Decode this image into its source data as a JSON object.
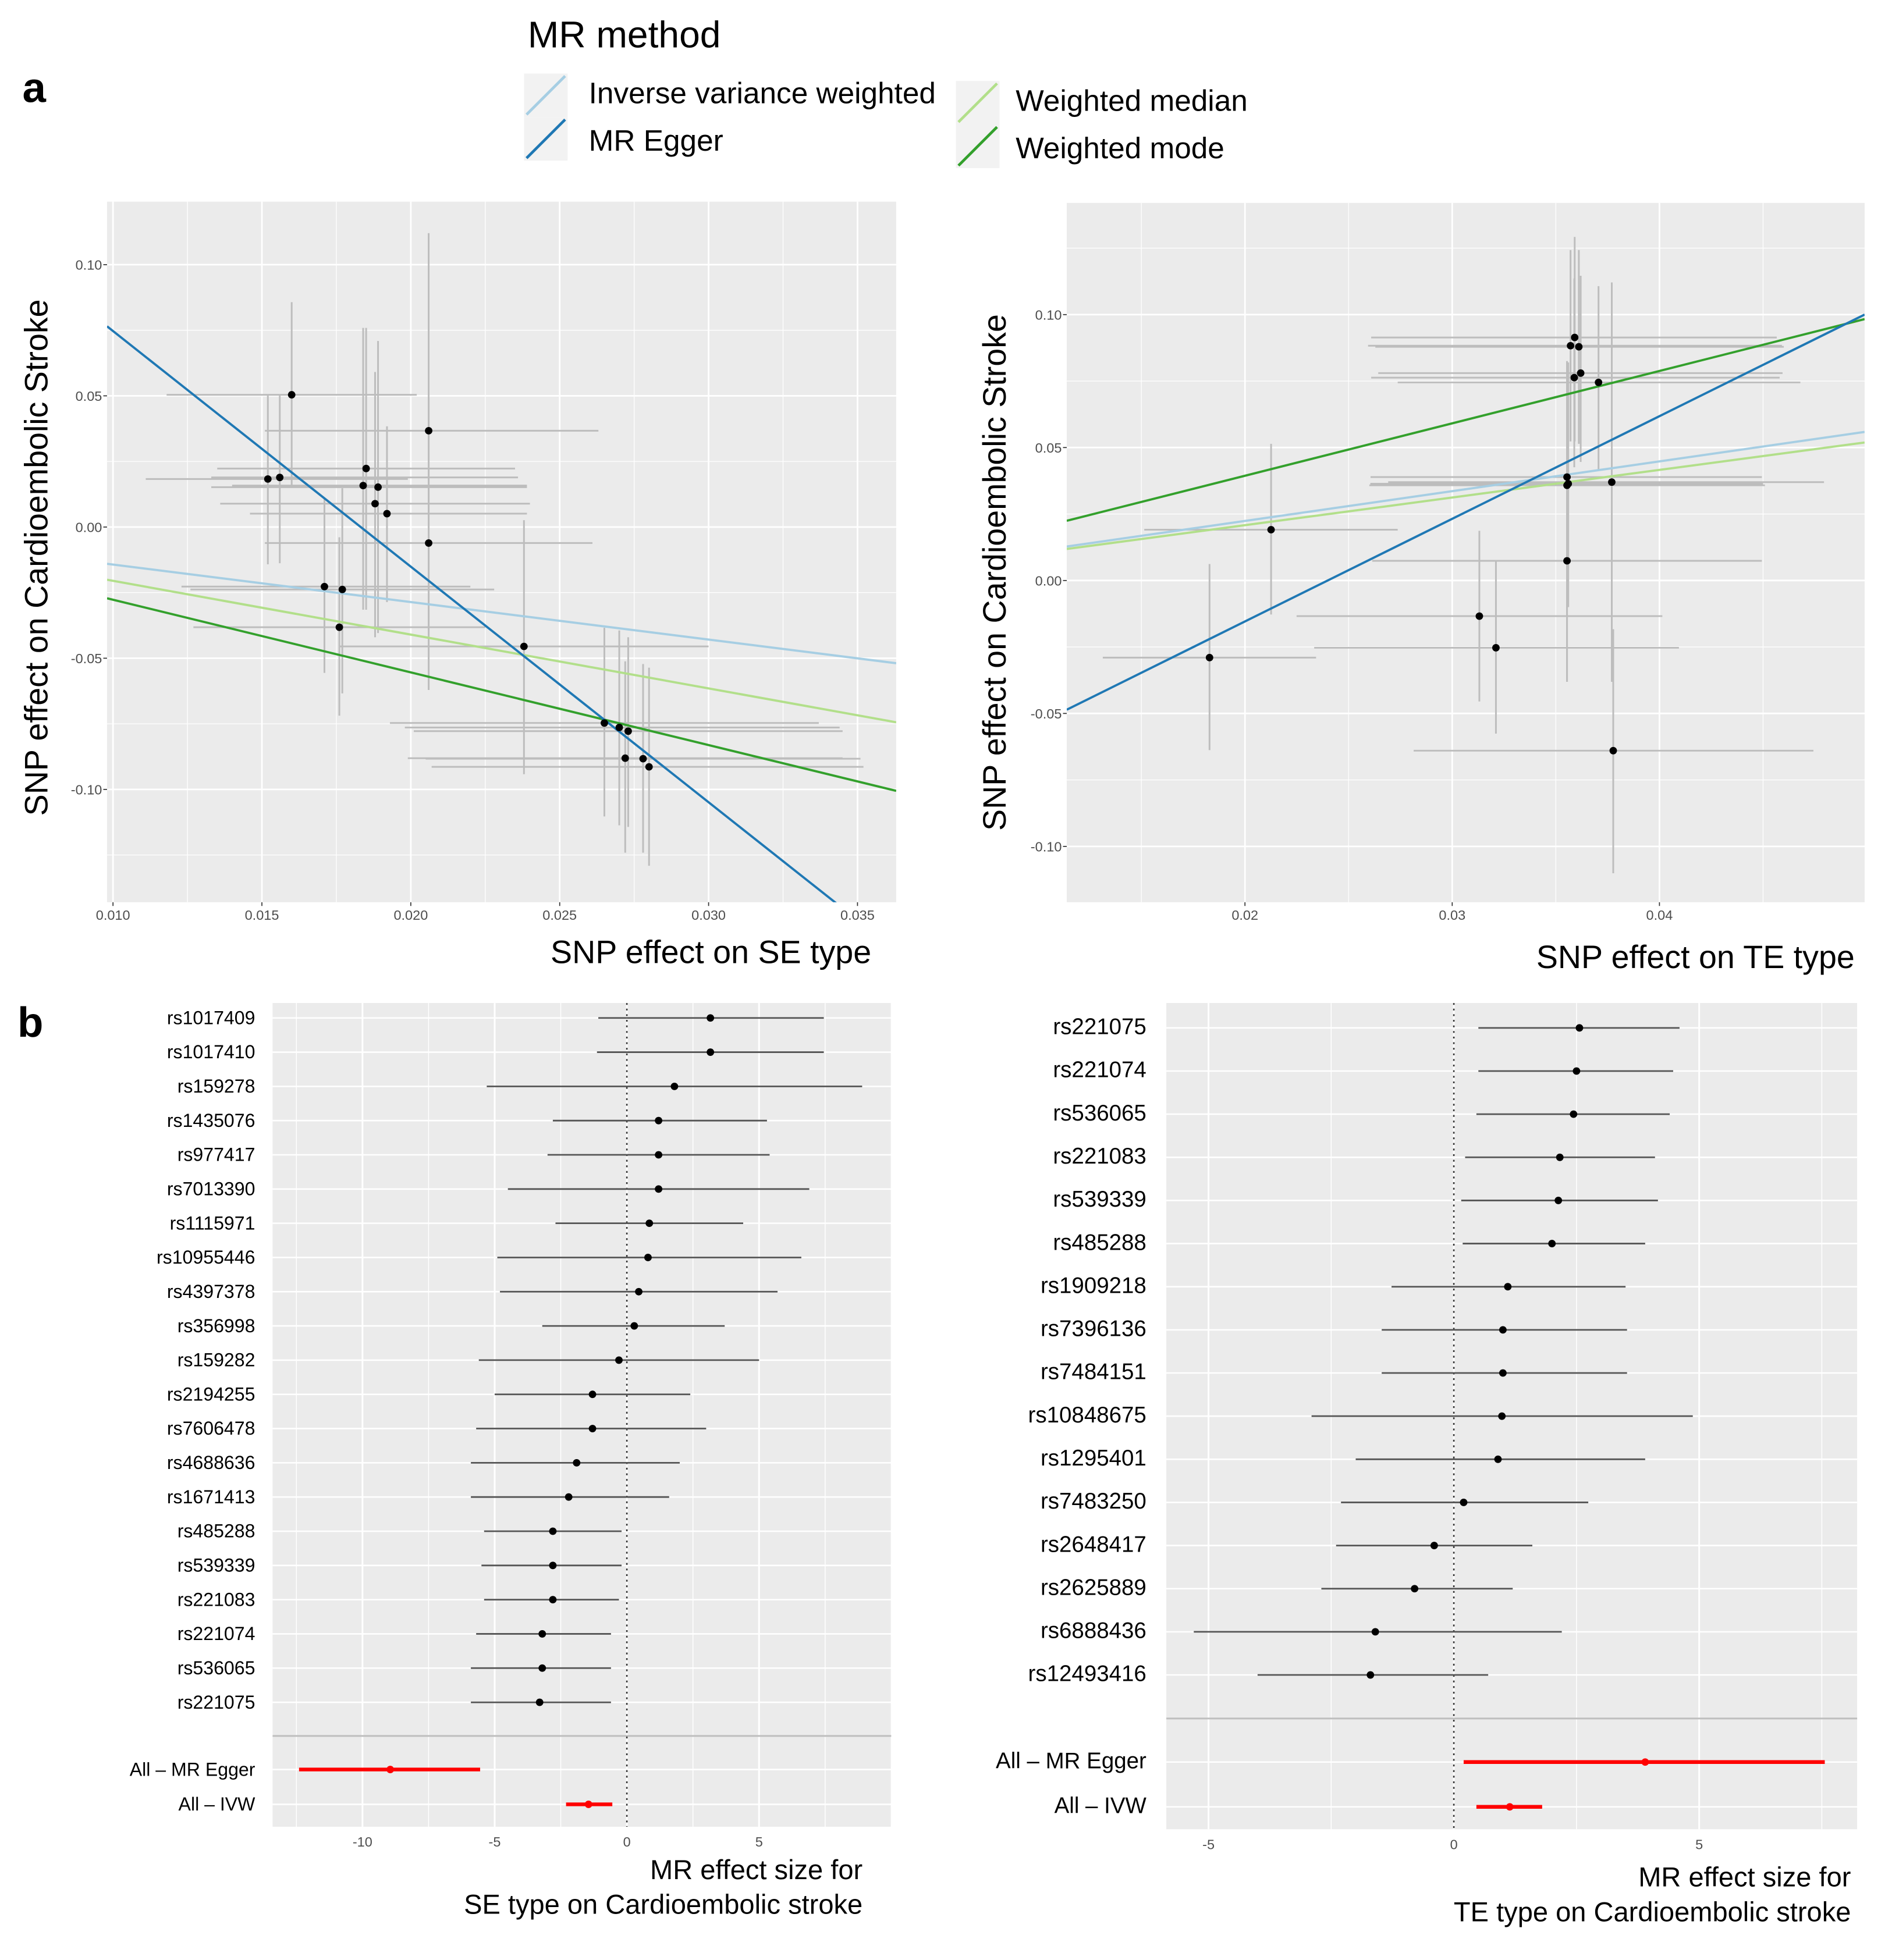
{
  "panel_labels": {
    "a": "a",
    "b": "b"
  },
  "legend": {
    "title": "MR method",
    "items": [
      {
        "label": "Inverse variance weighted",
        "color": "#A6CEE3"
      },
      {
        "label": "MR Egger",
        "color": "#1F78B4"
      },
      {
        "label": "Weighted median",
        "color": "#B2DF8A"
      },
      {
        "label": "Weighted mode",
        "color": "#33A02C"
      }
    ]
  },
  "chart_data": [
    {
      "type": "scatter",
      "xlabel": "SNP effect on SE type",
      "ylabel": "SNP effect on Cardioembolic Stroke",
      "xlim": [
        0.0098,
        0.0363
      ],
      "ylim": [
        -0.143,
        0.124
      ],
      "x_ticks": [
        "0.010",
        "0.015",
        "0.020",
        "0.025",
        "0.030",
        "0.035"
      ],
      "y_ticks": [
        "-0.10",
        "-0.05",
        "0.00",
        "0.05",
        "0.10"
      ],
      "grid": true,
      "points": [
        {
          "x": 0.016,
          "y": 0.0504,
          "xlo": 0.0118,
          "xhi": 0.0202,
          "ylo": 0.0158,
          "yhi": 0.0857
        },
        {
          "x": 0.0152,
          "y": 0.0183,
          "xlo": 0.0111,
          "xhi": 0.0199,
          "ylo": -0.0142,
          "yhi": 0.0502
        },
        {
          "x": 0.0156,
          "y": 0.0189,
          "xlo": 0.0133,
          "xhi": 0.0236,
          "ylo": -0.0138,
          "yhi": 0.0502
        },
        {
          "x": 0.0206,
          "y": 0.0367,
          "xlo": 0.0151,
          "xhi": 0.0263,
          "ylo": -0.0621,
          "yhi": 0.112
        },
        {
          "x": 0.0185,
          "y": 0.0223,
          "xlo": 0.0135,
          "xhi": 0.0235,
          "ylo": -0.0315,
          "yhi": 0.0759
        },
        {
          "x": 0.0184,
          "y": 0.0158,
          "xlo": 0.014,
          "xhi": 0.0239,
          "ylo": -0.0315,
          "yhi": 0.0759
        },
        {
          "x": 0.0189,
          "y": 0.0152,
          "xlo": 0.0133,
          "xhi": 0.0239,
          "ylo": -0.0404,
          "yhi": 0.0709
        },
        {
          "x": 0.0188,
          "y": 0.0089,
          "xlo": 0.0136,
          "xhi": 0.024,
          "ylo": -0.042,
          "yhi": 0.0591
        },
        {
          "x": 0.0192,
          "y": 0.0051,
          "xlo": 0.0146,
          "xhi": 0.0239,
          "ylo": -0.0286,
          "yhi": 0.0384
        },
        {
          "x": 0.0206,
          "y": -0.0061,
          "xlo": 0.0151,
          "xhi": 0.0261,
          "ylo": -0.0621,
          "yhi": 0.0493
        },
        {
          "x": 0.0171,
          "y": -0.0227,
          "xlo": 0.0123,
          "xhi": 0.022,
          "ylo": -0.0556,
          "yhi": 0.0108
        },
        {
          "x": 0.0177,
          "y": -0.0238,
          "xlo": 0.0126,
          "xhi": 0.0228,
          "ylo": -0.0634,
          "yhi": 0.0148
        },
        {
          "x": 0.0176,
          "y": -0.0382,
          "xlo": 0.0127,
          "xhi": 0.0225,
          "ylo": -0.0719,
          "yhi": -0.0039
        },
        {
          "x": 0.0238,
          "y": -0.0455,
          "xlo": 0.0176,
          "xhi": 0.03,
          "ylo": -0.0942,
          "yhi": 0.0026
        },
        {
          "x": 0.0265,
          "y": -0.0747,
          "xlo": 0.0193,
          "xhi": 0.0337,
          "ylo": -0.1103,
          "yhi": -0.0384
        },
        {
          "x": 0.027,
          "y": -0.0764,
          "xlo": 0.0198,
          "xhi": 0.0344,
          "ylo": -0.1137,
          "yhi": -0.0394
        },
        {
          "x": 0.0273,
          "y": -0.0778,
          "xlo": 0.0201,
          "xhi": 0.0345,
          "ylo": -0.1143,
          "yhi": -0.042
        },
        {
          "x": 0.0272,
          "y": -0.0881,
          "xlo": 0.0199,
          "xhi": 0.0345,
          "ylo": -0.1241,
          "yhi": -0.0512
        },
        {
          "x": 0.0278,
          "y": -0.0883,
          "xlo": 0.0205,
          "xhi": 0.0351,
          "ylo": -0.1241,
          "yhi": -0.0522
        },
        {
          "x": 0.028,
          "y": -0.0914,
          "xlo": 0.0207,
          "xhi": 0.0352,
          "ylo": -0.1291,
          "yhi": -0.0536
        }
      ],
      "lines": [
        {
          "method": "Inverse variance weighted",
          "slope": -1.43,
          "intercept": 0.0,
          "color": "#A6CEE3"
        },
        {
          "method": "Weighted median",
          "slope": -2.05,
          "intercept": 0.0,
          "color": "#B2DF8A"
        },
        {
          "method": "Weighted mode",
          "slope": -2.77,
          "intercept": 0.0,
          "color": "#33A02C"
        },
        {
          "method": "MR Egger",
          "slope": -8.98,
          "intercept": 0.1645,
          "color": "#1F78B4"
        }
      ]
    },
    {
      "type": "scatter",
      "xlabel": "SNP effect on TE type",
      "ylabel": "SNP effect on Cardioembolic Stroke",
      "xlim": [
        0.0114,
        0.0499
      ],
      "ylim": [
        -0.121,
        0.142
      ],
      "x_ticks": [
        "0.02",
        "0.03",
        "0.04"
      ],
      "y_ticks": [
        "-0.10",
        "-0.05",
        "0.00",
        "0.05",
        "0.10"
      ],
      "grid": true,
      "points": [
        {
          "x": 0.01829,
          "y": -0.029,
          "xlo": 0.01314,
          "xhi": 0.02343,
          "ylo": -0.0638,
          "yhi": 0.0062
        },
        {
          "x": 0.02126,
          "y": 0.0191,
          "xlo": 0.01514,
          "xhi": 0.02737,
          "ylo": -0.0128,
          "yhi": 0.0514
        },
        {
          "x": 0.03131,
          "y": -0.0134,
          "xlo": 0.02249,
          "xhi": 0.04014,
          "ylo": -0.0455,
          "yhi": 0.0187
        },
        {
          "x": 0.03211,
          "y": -0.0253,
          "xlo": 0.02334,
          "xhi": 0.04094,
          "ylo": -0.0576,
          "yhi": 0.0076
        },
        {
          "x": 0.03554,
          "y": 0.0074,
          "xlo": 0.02614,
          "xhi": 0.04494,
          "ylo": -0.0381,
          "yhi": 0.0407
        },
        {
          "x": 0.03554,
          "y": 0.0358,
          "xlo": 0.026,
          "xhi": 0.04509,
          "ylo": -0.0381,
          "yhi": 0.0825
        },
        {
          "x": 0.0356,
          "y": 0.0364,
          "xlo": 0.02605,
          "xhi": 0.045,
          "ylo": -0.01,
          "yhi": 0.082
        },
        {
          "x": 0.03554,
          "y": 0.0389,
          "xlo": 0.02606,
          "xhi": 0.04494,
          "ylo": -0.0099,
          "yhi": 0.0825
        },
        {
          "x": 0.0377,
          "y": 0.037,
          "xlo": 0.02691,
          "xhi": 0.04794,
          "ylo": -0.0381,
          "yhi": 0.1121
        },
        {
          "x": 0.03777,
          "y": -0.064,
          "xlo": 0.02814,
          "xhi": 0.04743,
          "ylo": -0.1101,
          "yhi": -0.0183
        },
        {
          "x": 0.03591,
          "y": 0.0914,
          "xlo": 0.02609,
          "xhi": 0.04566,
          "ylo": 0.0523,
          "yhi": 0.1292
        },
        {
          "x": 0.03571,
          "y": 0.0883,
          "xlo": 0.02594,
          "xhi": 0.04591,
          "ylo": 0.0523,
          "yhi": 0.1243
        },
        {
          "x": 0.03611,
          "y": 0.0879,
          "xlo": 0.02629,
          "xhi": 0.046,
          "ylo": 0.0514,
          "yhi": 0.1243
        },
        {
          "x": 0.03589,
          "y": 0.0763,
          "xlo": 0.02609,
          "xhi": 0.0458,
          "ylo": 0.0426,
          "yhi": 0.1136
        },
        {
          "x": 0.0362,
          "y": 0.078,
          "xlo": 0.02643,
          "xhi": 0.04594,
          "ylo": 0.0446,
          "yhi": 0.1146
        },
        {
          "x": 0.03706,
          "y": 0.0745,
          "xlo": 0.02737,
          "xhi": 0.0468,
          "ylo": 0.0416,
          "yhi": 0.1107
        }
      ],
      "lines": [
        {
          "method": "Inverse variance weighted",
          "slope": 1.12,
          "intercept": 0.0,
          "color": "#A6CEE3"
        },
        {
          "method": "Weighted median",
          "slope": 1.04,
          "intercept": 0.0,
          "color": "#B2DF8A"
        },
        {
          "method": "Weighted mode",
          "slope": 1.97,
          "intercept": 0.0,
          "color": "#33A02C"
        },
        {
          "method": "MR Egger",
          "slope": 3.86,
          "intercept": -0.0926,
          "color": "#1F78B4"
        }
      ]
    },
    {
      "type": "forest",
      "xlabel_lines": [
        "MR effect size for",
        "SE type  on  Cardioembolic stroke"
      ],
      "xlim": [
        -13.4,
        10.0
      ],
      "x_ticks": [
        "-10",
        "-5",
        "0",
        "5"
      ],
      "reference_line": 0,
      "rows": [
        {
          "label": "rs1017409",
          "est": 3.16,
          "lo": -1.08,
          "hi": 7.45
        },
        {
          "label": "rs1017410",
          "est": 3.16,
          "lo": -1.13,
          "hi": 7.45
        },
        {
          "label": "rs159278",
          "est": 1.8,
          "lo": -5.3,
          "hi": 8.9
        },
        {
          "label": "rs1435076",
          "est": 1.2,
          "lo": -2.8,
          "hi": 5.3
        },
        {
          "label": "rs977417",
          "est": 1.2,
          "lo": -3.0,
          "hi": 5.4
        },
        {
          "label": "rs7013390",
          "est": 1.2,
          "lo": -4.5,
          "hi": 6.9
        },
        {
          "label": "rs1115971",
          "est": 0.85,
          "lo": -2.7,
          "hi": 4.4
        },
        {
          "label": "rs10955446",
          "est": 0.8,
          "lo": -4.9,
          "hi": 6.6
        },
        {
          "label": "rs4397378",
          "est": 0.45,
          "lo": -4.8,
          "hi": 5.7
        },
        {
          "label": "rs356998",
          "est": 0.28,
          "lo": -3.2,
          "hi": 3.7
        },
        {
          "label": "rs159282",
          "est": -0.3,
          "lo": -5.6,
          "hi": 5.0
        },
        {
          "label": "rs2194255",
          "est": -1.3,
          "lo": -5.0,
          "hi": 2.4
        },
        {
          "label": "rs7606478",
          "est": -1.3,
          "lo": -5.7,
          "hi": 3.0
        },
        {
          "label": "rs4688636",
          "est": -1.9,
          "lo": -5.9,
          "hi": 2.0
        },
        {
          "label": "rs1671413",
          "est": -2.2,
          "lo": -5.9,
          "hi": 1.6
        },
        {
          "label": "rs485288",
          "est": -2.8,
          "lo": -5.4,
          "hi": -0.2
        },
        {
          "label": "rs539339",
          "est": -2.8,
          "lo": -5.5,
          "hi": -0.2
        },
        {
          "label": "rs221083",
          "est": -2.8,
          "lo": -5.4,
          "hi": -0.3
        },
        {
          "label": "rs221074",
          "est": -3.2,
          "lo": -5.7,
          "hi": -0.6
        },
        {
          "label": "rs536065",
          "est": -3.2,
          "lo": -5.9,
          "hi": -0.6
        },
        {
          "label": "rs221075",
          "est": -3.3,
          "lo": -5.9,
          "hi": -0.6
        }
      ],
      "summary": [
        {
          "label": "All – MR Egger",
          "est": -8.95,
          "lo": -12.4,
          "hi": -5.55,
          "color": "#FF0000"
        },
        {
          "label": "All – IVW",
          "est": -1.45,
          "lo": -2.3,
          "hi": -0.55,
          "color": "#FF0000"
        }
      ]
    },
    {
      "type": "forest",
      "xlabel_lines": [
        "MR effect size for",
        "TE type  on  Cardioembolic stroke"
      ],
      "xlim": [
        -5.86,
        8.22
      ],
      "x_ticks": [
        "-5",
        "0",
        "5"
      ],
      "reference_line": 0,
      "rows": [
        {
          "label": "rs221075",
          "est": 2.56,
          "lo": 0.5,
          "hi": 4.6
        },
        {
          "label": "rs221074",
          "est": 2.5,
          "lo": 0.5,
          "hi": 4.47
        },
        {
          "label": "rs536065",
          "est": 2.44,
          "lo": 0.46,
          "hi": 4.4
        },
        {
          "label": "rs221083",
          "est": 2.16,
          "lo": 0.23,
          "hi": 4.1
        },
        {
          "label": "rs539339",
          "est": 2.13,
          "lo": 0.15,
          "hi": 4.16
        },
        {
          "label": "rs485288",
          "est": 2.0,
          "lo": 0.18,
          "hi": 3.9
        },
        {
          "label": "rs1909218",
          "est": 1.1,
          "lo": -1.27,
          "hi": 3.5
        },
        {
          "label": "rs7396136",
          "est": 1.0,
          "lo": -1.47,
          "hi": 3.53
        },
        {
          "label": "rs7484151",
          "est": 1.0,
          "lo": -1.47,
          "hi": 3.53
        },
        {
          "label": "rs10848675",
          "est": 0.98,
          "lo": -2.9,
          "hi": 4.87
        },
        {
          "label": "rs1295401",
          "est": 0.9,
          "lo": -2.0,
          "hi": 3.9
        },
        {
          "label": "rs7483250",
          "est": 0.2,
          "lo": -2.3,
          "hi": 2.74
        },
        {
          "label": "rs2648417",
          "est": -0.4,
          "lo": -2.4,
          "hi": 1.6
        },
        {
          "label": "rs2625889",
          "est": -0.8,
          "lo": -2.7,
          "hi": 1.2
        },
        {
          "label": "rs6888436",
          "est": -1.6,
          "lo": -5.3,
          "hi": 2.2
        },
        {
          "label": "rs12493416",
          "est": -1.7,
          "lo": -4.0,
          "hi": 0.7
        }
      ],
      "summary": [
        {
          "label": "All – MR Egger",
          "est": 3.9,
          "lo": 0.2,
          "hi": 7.56,
          "color": "#FF0000"
        },
        {
          "label": "All – IVW",
          "est": 1.14,
          "lo": 0.46,
          "hi": 1.8,
          "color": "#FF0000"
        }
      ]
    }
  ]
}
